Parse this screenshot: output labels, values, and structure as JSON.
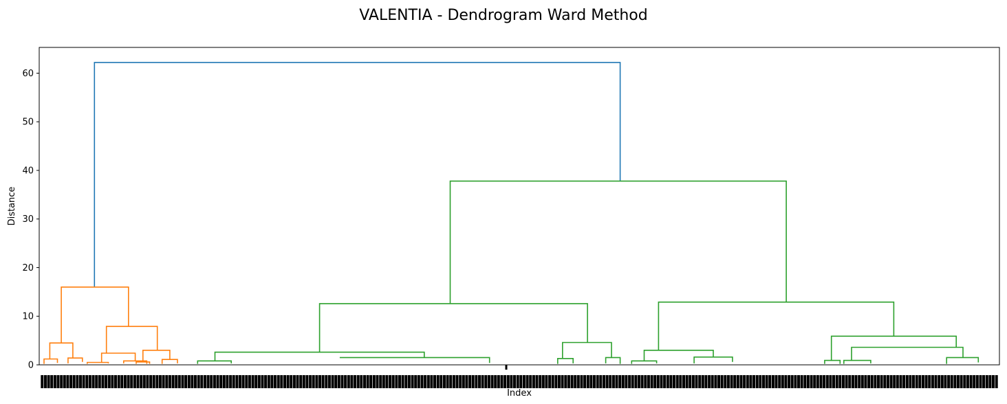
{
  "chart_data": {
    "type": "dendrogram",
    "title": "VALENTIA - Dendrogram Ward Method",
    "xlabel": "Index",
    "ylabel": "Distance",
    "ylim": [
      0,
      65.3
    ],
    "yticks": [
      0,
      10,
      20,
      30,
      40,
      50,
      60
    ],
    "xlim": [
      0,
      1000
    ],
    "grid": false,
    "legend": "none",
    "x_tick_labels": "dense overlapping sample indices (illegible)",
    "colors": {
      "top": "#1f77b4",
      "cluster_1": "#ff7f0e",
      "cluster_2": "#2ca02c"
    },
    "links": [
      {
        "c": "top",
        "x1": 57.5,
        "h1": 16.0,
        "x2": 605.0,
        "h2": 37.8,
        "h": 62.2
      },
      {
        "c": "cluster_2",
        "x1": 428.0,
        "h1": 12.6,
        "x2": 778.0,
        "h2": 12.9,
        "h": 37.8
      },
      {
        "c": "cluster_1",
        "x1": 23.0,
        "h1": 4.5,
        "x2": 93.0,
        "h2": 7.9,
        "h": 16.0
      },
      {
        "c": "cluster_2",
        "x1": 292.0,
        "h1": 2.6,
        "x2": 571.0,
        "h2": 4.6,
        "h": 12.6
      },
      {
        "c": "cluster_2",
        "x1": 645.0,
        "h1": 3.0,
        "x2": 890.0,
        "h2": 5.9,
        "h": 12.9
      },
      {
        "c": "cluster_1",
        "x1": 70.0,
        "h1": 2.4,
        "x2": 123.0,
        "h2": 3.0,
        "h": 7.9
      },
      {
        "c": "cluster_1",
        "x1": 11.0,
        "h1": 1.2,
        "x2": 35.0,
        "h2": 1.4,
        "h": 4.5
      },
      {
        "c": "cluster_2",
        "x1": 183.0,
        "h1": 0.8,
        "x2": 401.0,
        "h2": 1.5,
        "h": 2.6
      },
      {
        "c": "cluster_2",
        "x1": 313.0,
        "h1": 1.5,
        "x2": 469.0,
        "h2": 0.4,
        "h": 1.5
      },
      {
        "c": "cluster_2",
        "x1": 545.0,
        "h1": 1.3,
        "x2": 596.0,
        "h2": 1.5,
        "h": 4.6
      },
      {
        "c": "cluster_2",
        "x1": 630.0,
        "h1": 0.8,
        "x2": 702.0,
        "h2": 1.6,
        "h": 3.0
      },
      {
        "c": "cluster_2",
        "x1": 825.0,
        "h1": 0.9,
        "x2": 955.0,
        "h2": 3.6,
        "h": 5.9
      },
      {
        "c": "cluster_2",
        "x1": 846.0,
        "h1": 0.9,
        "x2": 962.0,
        "h2": 1.5,
        "h": 3.6
      },
      {
        "c": "cluster_1",
        "x1": 65.0,
        "h1": 0.5,
        "x2": 100.0,
        "h2": 0.8,
        "h": 2.4
      },
      {
        "c": "cluster_1",
        "x1": 108.0,
        "h1": 0.6,
        "x2": 136.0,
        "h2": 1.1,
        "h": 3.0
      },
      {
        "c": "cluster_1",
        "x1": 30.0,
        "h1": 0.3,
        "x2": 45.0,
        "h2": 0.6,
        "h": 1.4
      },
      {
        "c": "cluster_1",
        "x1": 5.0,
        "h1": 0.2,
        "x2": 19.0,
        "h2": 0.4,
        "h": 1.2
      },
      {
        "c": "cluster_1",
        "x1": 50.0,
        "h1": 0.2,
        "x2": 72.0,
        "h2": 0.3,
        "h": 0.5
      },
      {
        "c": "cluster_1",
        "x1": 88.0,
        "h1": 0.3,
        "x2": 112.0,
        "h2": 0.2,
        "h": 0.8
      },
      {
        "c": "cluster_1",
        "x1": 101.0,
        "h1": 0.2,
        "x2": 115.0,
        "h2": 0.2,
        "h": 0.6
      },
      {
        "c": "cluster_1",
        "x1": 128.0,
        "h1": 0.2,
        "x2": 144.0,
        "h2": 0.3,
        "h": 1.1
      },
      {
        "c": "cluster_2",
        "x1": 165.0,
        "h1": 0.2,
        "x2": 200.0,
        "h2": 0.3,
        "h": 0.8
      },
      {
        "c": "cluster_2",
        "x1": 540.0,
        "h1": 0.2,
        "x2": 556.0,
        "h2": 0.3,
        "h": 1.3
      },
      {
        "c": "cluster_2",
        "x1": 590.0,
        "h1": 0.3,
        "x2": 605.0,
        "h2": 0.2,
        "h": 1.5
      },
      {
        "c": "cluster_2",
        "x1": 617.0,
        "h1": 0.2,
        "x2": 643.0,
        "h2": 0.3,
        "h": 0.8
      },
      {
        "c": "cluster_2",
        "x1": 682.0,
        "h1": 0.3,
        "x2": 722.0,
        "h2": 0.6,
        "h": 1.6
      },
      {
        "c": "cluster_2",
        "x1": 818.0,
        "h1": 0.2,
        "x2": 834.0,
        "h2": 0.2,
        "h": 0.9
      },
      {
        "c": "cluster_2",
        "x1": 838.0,
        "h1": 0.2,
        "x2": 866.0,
        "h2": 0.3,
        "h": 0.9
      },
      {
        "c": "cluster_2",
        "x1": 945.0,
        "h1": 0.2,
        "x2": 978.0,
        "h2": 0.5,
        "h": 1.5
      }
    ]
  }
}
